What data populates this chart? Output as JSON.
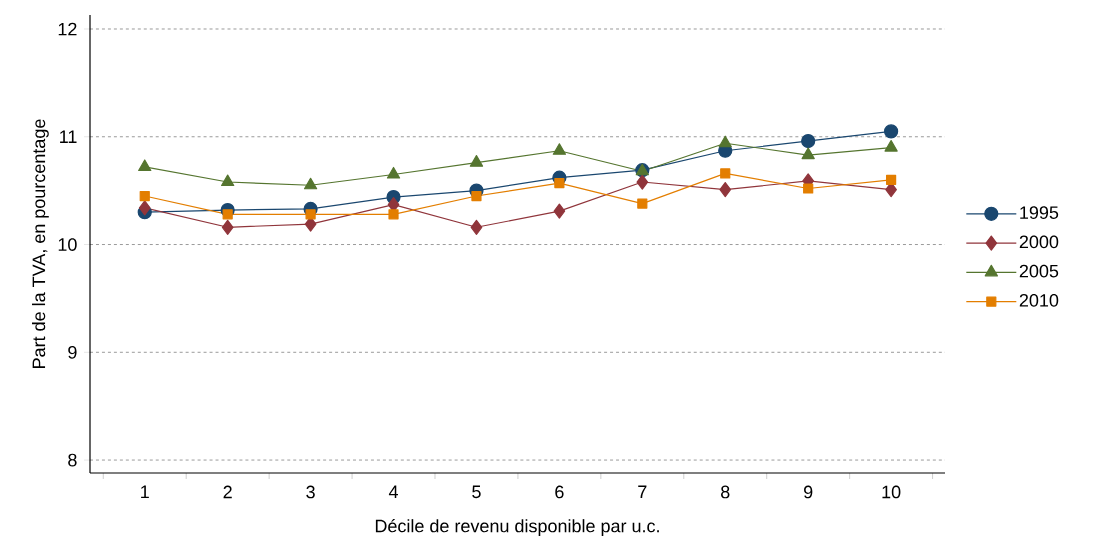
{
  "chart_data": {
    "type": "line",
    "xlabel": "Décile de revenu disponible par u.c.",
    "ylabel": "Part de la TVA, en pourcentage",
    "categories": [
      "1",
      "2",
      "3",
      "4",
      "5",
      "6",
      "7",
      "8",
      "9",
      "10"
    ],
    "series": [
      {
        "name": "1995",
        "color": "#1a476f",
        "marker": "circle",
        "values": [
          10.3,
          10.32,
          10.33,
          10.44,
          10.5,
          10.62,
          10.69,
          10.87,
          10.96,
          11.05
        ]
      },
      {
        "name": "2000",
        "color": "#90353b",
        "marker": "diamond",
        "values": [
          10.34,
          10.16,
          10.19,
          10.37,
          10.16,
          10.31,
          10.58,
          10.51,
          10.59,
          10.51
        ]
      },
      {
        "name": "2005",
        "color": "#55752f",
        "marker": "triangle",
        "values": [
          10.72,
          10.58,
          10.55,
          10.65,
          10.76,
          10.87,
          10.68,
          10.94,
          10.83,
          10.9
        ]
      },
      {
        "name": "2010",
        "color": "#e37e00",
        "marker": "square",
        "values": [
          10.45,
          10.28,
          10.28,
          10.28,
          10.45,
          10.57,
          10.38,
          10.66,
          10.52,
          10.6
        ]
      }
    ],
    "ylim": [
      7.88,
      12.13
    ],
    "yticks": [
      8,
      9,
      10,
      11,
      12
    ],
    "grid": "y",
    "legend": "right",
    "line_style": "solid"
  }
}
